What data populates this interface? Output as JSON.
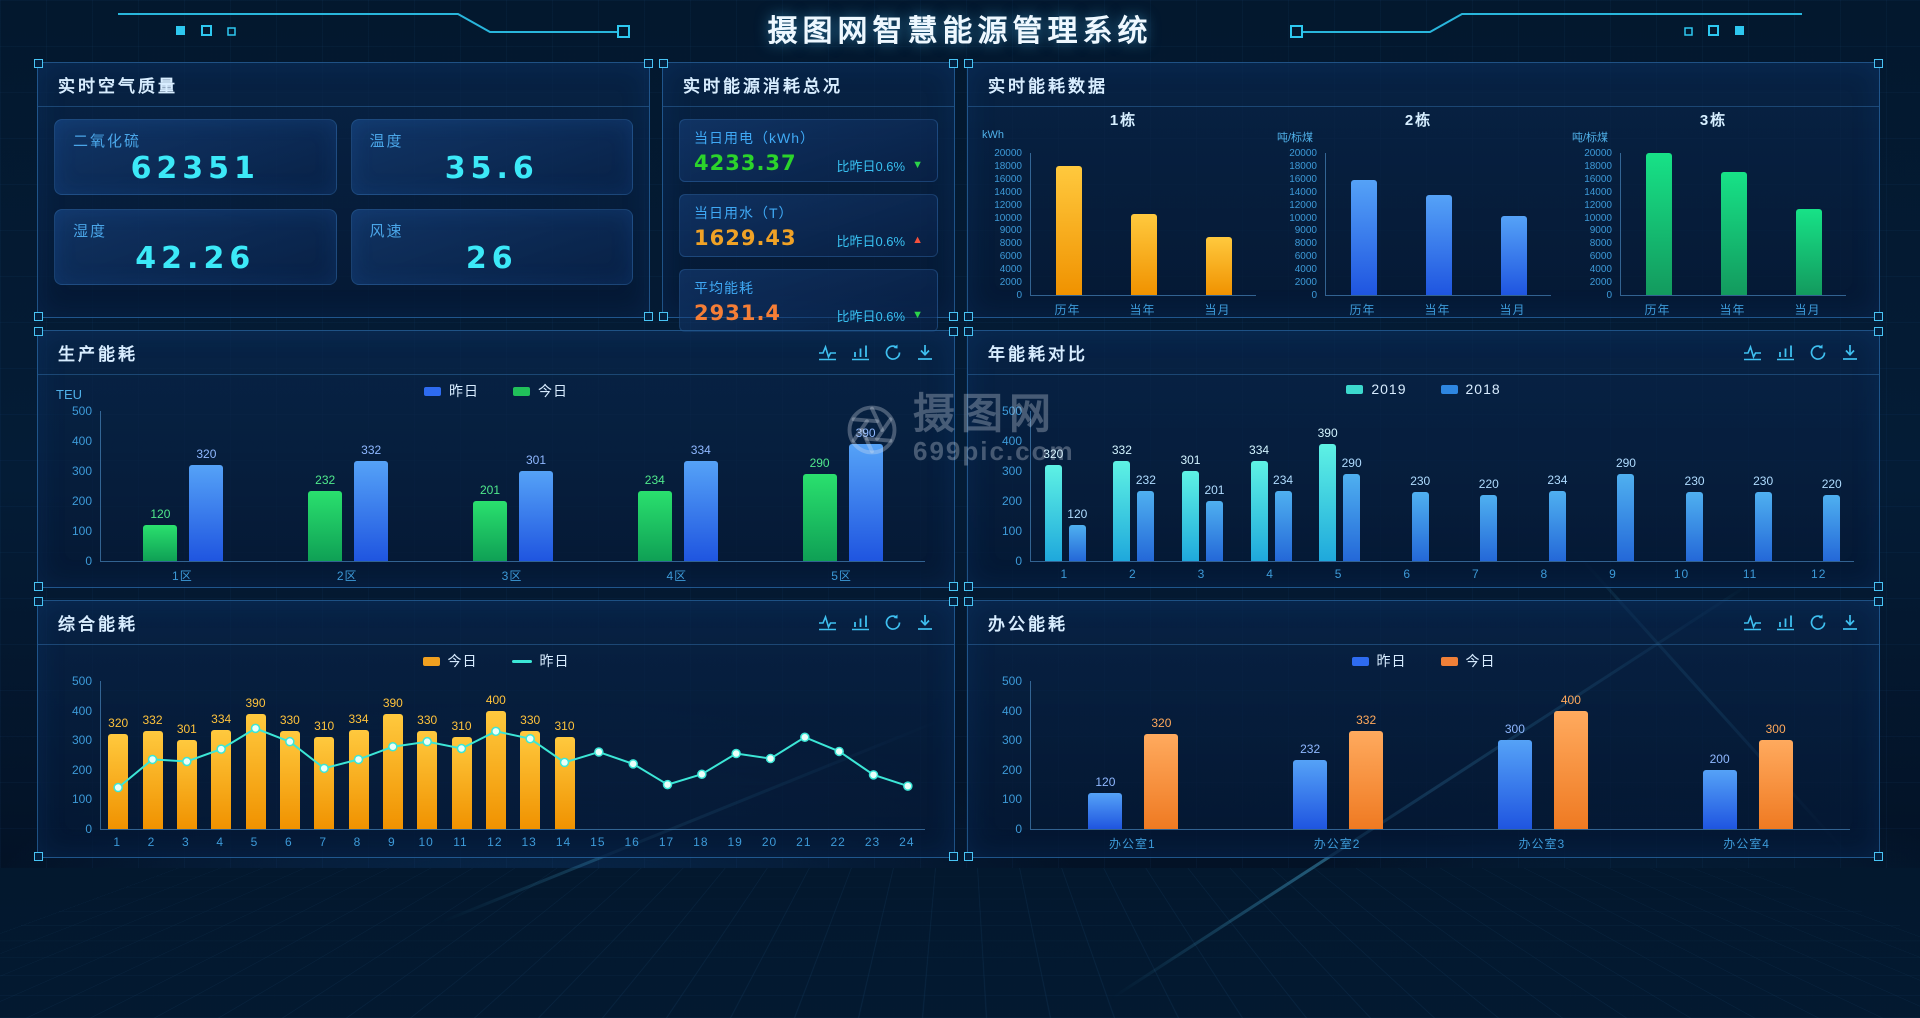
{
  "header": {
    "title": "摄图网智慧能源管理系统"
  },
  "watermark": {
    "brand": "摄图网",
    "site": "699pic.com"
  },
  "toolbar": {
    "icons": [
      "line-chart",
      "bar-chart",
      "refresh",
      "download"
    ]
  },
  "palette": {
    "gold": [
      "#ffc93e",
      "#f09200"
    ],
    "blue": [
      "#55a2f7",
      "#1f55e0"
    ],
    "green": [
      "#17e287",
      "#139a5e"
    ],
    "greenProd": [
      "#2ae06e",
      "#0fa055"
    ],
    "cyan": [
      "#5ef2e4",
      "#1fa8dc"
    ],
    "skyblue": [
      "#4fb0f0",
      "#2468d8"
    ],
    "orange": [
      "#ffaa5e",
      "#ef7a22"
    ],
    "line_cyan": "#3ce6d6",
    "accent": "#2ec8f0"
  },
  "panels": {
    "air": {
      "title": "实时空气质量",
      "cards": [
        {
          "label": "二氧化硫",
          "value": "62351"
        },
        {
          "label": "温度",
          "value": "35.6"
        },
        {
          "label": "湿度",
          "value": "42.26"
        },
        {
          "label": "风速",
          "value": "26"
        }
      ]
    },
    "overview": {
      "title": "实时能源消耗总况",
      "items": [
        {
          "label": "当日用电（kWh）",
          "value": "4233.37",
          "value_color": "#2bd42b",
          "compare": "比昨日0.6%",
          "trend": "down",
          "trend_color": "#2bd44a"
        },
        {
          "label": "当日用水（T）",
          "value": "1629.43",
          "value_color": "#f0a226",
          "compare": "比昨日0.6%",
          "trend": "up",
          "trend_color": "#f4503c"
        },
        {
          "label": "平均能耗",
          "value": "2931.4",
          "value_color": "#f57e36",
          "compare": "比昨日0.6%",
          "trend": "down",
          "trend_color": "#2bd44a"
        }
      ]
    },
    "realtime": {
      "title": "实时能耗数据"
    },
    "production": {
      "title": "生产能耗"
    },
    "annual": {
      "title": "年能耗对比"
    },
    "comprehensive": {
      "title": "综合能耗"
    },
    "office": {
      "title": "办公能耗"
    }
  },
  "chart_data": [
    {
      "id": "building1",
      "type": "bar",
      "title": "1栋",
      "ylabel": "kWh",
      "categories": [
        "历年",
        "当年",
        "当月"
      ],
      "series": [
        {
          "name": "能耗",
          "color": "gold",
          "values": [
            18000,
            10500,
            8500
          ]
        }
      ],
      "yticks": [
        20000,
        18000,
        16000,
        14000,
        12000,
        10000,
        9000,
        8000,
        6000,
        4000,
        2000,
        0
      ],
      "show_values": false
    },
    {
      "id": "building2",
      "type": "bar",
      "title": "2栋",
      "ylabel": "吨/标煤",
      "categories": [
        "历年",
        "当年",
        "当月"
      ],
      "series": [
        {
          "name": "能耗",
          "color": "blue",
          "values": [
            15800,
            13500,
            10200
          ]
        }
      ],
      "yticks": [
        20000,
        18000,
        16000,
        14000,
        12000,
        10000,
        9000,
        8000,
        6000,
        4000,
        2000,
        0
      ],
      "show_values": false
    },
    {
      "id": "building3",
      "type": "bar",
      "title": "3栋",
      "ylabel": "吨/标煤",
      "categories": [
        "历年",
        "当年",
        "当月"
      ],
      "series": [
        {
          "name": "能耗",
          "color": "green",
          "values": [
            20000,
            17000,
            11300
          ]
        }
      ],
      "yticks": [
        20000,
        18000,
        16000,
        14000,
        12000,
        10000,
        9000,
        8000,
        6000,
        4000,
        2000,
        0
      ],
      "show_values": false
    },
    {
      "id": "production",
      "type": "bar",
      "ylabel": "TEU",
      "categories": [
        "1区",
        "2区",
        "3区",
        "4区",
        "5区"
      ],
      "legend": [
        {
          "label": "昨日",
          "color": "#2e6bf0",
          "type": "rect"
        },
        {
          "label": "今日",
          "color": "#21c05a",
          "type": "rect"
        }
      ],
      "series": [
        {
          "name": "今日",
          "color": "greenProd",
          "values": [
            120,
            232,
            201,
            234,
            290
          ]
        },
        {
          "name": "昨日",
          "color": "blue",
          "values": [
            320,
            332,
            301,
            334,
            390
          ]
        }
      ],
      "yticks": [
        500,
        400,
        300,
        200,
        100,
        0
      ],
      "show_values": true
    },
    {
      "id": "annual",
      "type": "bar",
      "categories": [
        "1",
        "2",
        "3",
        "4",
        "5",
        "6",
        "7",
        "8",
        "9",
        "10",
        "11",
        "12"
      ],
      "legend": [
        {
          "label": "2019",
          "color": "#3cd8cc",
          "type": "rect"
        },
        {
          "label": "2018",
          "color": "#2e86e0",
          "type": "rect"
        }
      ],
      "series": [
        {
          "name": "2019",
          "color": "cyan",
          "values": [
            320,
            332,
            301,
            334,
            390,
            null,
            null,
            null,
            null,
            null,
            null,
            null
          ]
        },
        {
          "name": "2018",
          "color": "skyblue",
          "values": [
            120,
            232,
            201,
            234,
            290,
            230,
            220,
            234,
            290,
            230,
            230,
            220
          ]
        }
      ],
      "yticks": [
        500,
        400,
        300,
        200,
        100,
        0
      ],
      "show_values": true
    },
    {
      "id": "comprehensive",
      "type": "bar+line",
      "categories": [
        "1",
        "2",
        "3",
        "4",
        "5",
        "6",
        "7",
        "8",
        "9",
        "10",
        "11",
        "12",
        "13",
        "14",
        "15",
        "16",
        "17",
        "18",
        "19",
        "20",
        "21",
        "22",
        "23",
        "24"
      ],
      "legend": [
        {
          "label": "今日",
          "color": "#f0a020",
          "type": "rect"
        },
        {
          "label": "昨日",
          "color": "#3ce6d6",
          "type": "line"
        }
      ],
      "series": [
        {
          "name": "今日",
          "color": "gold",
          "values": [
            320,
            332,
            301,
            334,
            390,
            330,
            310,
            334,
            390,
            330,
            310,
            400,
            330,
            310,
            null,
            null,
            null,
            null,
            null,
            null,
            null,
            null,
            null,
            null
          ]
        }
      ],
      "line": {
        "name": "昨日",
        "color": "#3ce6d6",
        "values": [
          140,
          235,
          228,
          270,
          340,
          295,
          205,
          235,
          278,
          295,
          272,
          330,
          305,
          225,
          260,
          220,
          150,
          185,
          255,
          238,
          310,
          262,
          183,
          145
        ]
      },
      "yticks": [
        500,
        400,
        300,
        200,
        100,
        0
      ],
      "show_values": true
    },
    {
      "id": "office",
      "type": "bar",
      "categories": [
        "办公室1",
        "办公室2",
        "办公室3",
        "办公室4"
      ],
      "legend": [
        {
          "label": "昨日",
          "color": "#2e6bf0",
          "type": "rect"
        },
        {
          "label": "今日",
          "color": "#f08038",
          "type": "rect"
        }
      ],
      "series": [
        {
          "name": "昨日",
          "color": "blue",
          "values": [
            120,
            232,
            300,
            200
          ]
        },
        {
          "name": "今日",
          "color": "orange",
          "values": [
            320,
            332,
            400,
            300
          ]
        }
      ],
      "yticks": [
        500,
        400,
        300,
        200,
        100,
        0
      ],
      "show_values": true
    }
  ]
}
